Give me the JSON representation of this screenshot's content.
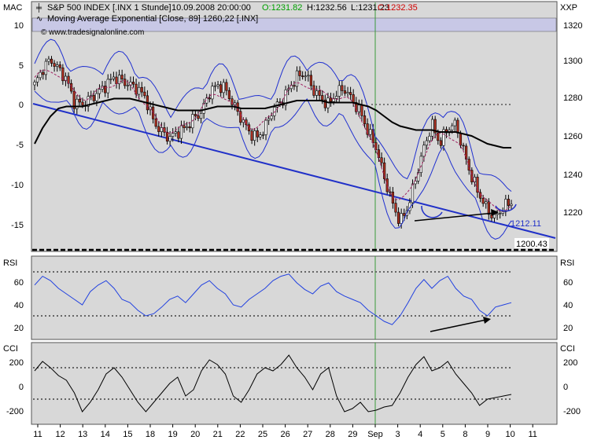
{
  "chart_data": {
    "type": "line",
    "instrument": {
      "name": "S&P 500 INDEX [.INX 1 Stunde]",
      "datetime": "10.09.2008 20:00:00",
      "open": "O:1231.82",
      "high": "H:1232.56",
      "low": "L:1231.23",
      "close": "C:1232.35"
    },
    "ma_legend": "Moving Average Exponential [Close, 89] 1260,22 [.INX]",
    "watermark": "© www.tradesignalonline.com",
    "colors": {
      "panel_bg": "#d8d8d8",
      "price_band": "#c8c8e6",
      "candle_up": "#ffffff",
      "candle_down": "#b03020",
      "ma": "#000000",
      "bollinger": "#2030d0",
      "trendline": "#2030c8",
      "rsi": "#2040e0",
      "cci": "#000000",
      "open_text": "#00a000",
      "close_text": "#d00000"
    },
    "main": {
      "left_axis_title": "MAC",
      "right_axis_title": "XXP",
      "left_ticks": [
        "10",
        "5",
        "0",
        "-5",
        "-10",
        "-15"
      ],
      "right_ticks": [
        "1320",
        "1300",
        "1280",
        "1260",
        "1240",
        "1220"
      ],
      "price_range": [
        1208,
        1324
      ],
      "price_series": [
        1292,
        1300,
        1305,
        1300,
        1295,
        1283,
        1282,
        1285,
        1288,
        1292,
        1296,
        1294,
        1292,
        1290,
        1285,
        1273,
        1268,
        1265,
        1268,
        1270,
        1275,
        1278,
        1288,
        1292,
        1290,
        1282,
        1275,
        1268,
        1265,
        1270,
        1280,
        1283,
        1290,
        1296,
        1298,
        1290,
        1285,
        1282,
        1288,
        1290,
        1284,
        1278,
        1268,
        1260,
        1245,
        1232,
        1222,
        1230,
        1245,
        1260,
        1272,
        1262,
        1270,
        1272,
        1258,
        1245,
        1236,
        1228,
        1224,
        1230,
        1232
      ],
      "ma_series": [
        1262,
        1270,
        1276,
        1280,
        1281,
        1281,
        1281,
        1282,
        1283,
        1284,
        1285,
        1285,
        1285,
        1284,
        1283,
        1282,
        1281,
        1280,
        1279,
        1279,
        1279,
        1279,
        1280,
        1281,
        1281,
        1281,
        1280,
        1280,
        1280,
        1280,
        1281,
        1282,
        1283,
        1284,
        1284,
        1284,
        1284,
        1283,
        1283,
        1283,
        1283,
        1282,
        1281,
        1279,
        1276,
        1273,
        1271,
        1270,
        1269,
        1269,
        1269,
        1268,
        1268,
        1268,
        1267,
        1266,
        1264,
        1262,
        1261,
        1260,
        1260
      ],
      "support_label": "1200.43",
      "trendline_label": "1212.11"
    },
    "rsi": {
      "title": "RSI",
      "ticks": [
        "60",
        "40",
        "20"
      ],
      "levels": [
        70,
        30
      ],
      "range": [
        10,
        80
      ],
      "series": [
        58,
        66,
        62,
        55,
        50,
        45,
        40,
        52,
        58,
        62,
        55,
        45,
        42,
        35,
        30,
        32,
        38,
        45,
        48,
        42,
        50,
        58,
        62,
        55,
        50,
        40,
        38,
        45,
        50,
        55,
        62,
        66,
        68,
        60,
        54,
        50,
        57,
        60,
        52,
        48,
        45,
        42,
        35,
        30,
        25,
        22,
        30,
        42,
        55,
        63,
        55,
        62,
        66,
        55,
        48,
        45,
        35,
        30,
        38,
        40,
        42
      ]
    },
    "cci": {
      "title": "CCI",
      "ticks": [
        "200",
        "0",
        "-200"
      ],
      "levels": [
        100,
        -100
      ],
      "range": [
        -250,
        250
      ],
      "series": [
        80,
        140,
        100,
        50,
        20,
        -60,
        -180,
        -120,
        -40,
        60,
        100,
        40,
        -40,
        -120,
        -180,
        -120,
        -60,
        0,
        40,
        -80,
        -40,
        80,
        150,
        120,
        60,
        -80,
        -120,
        -40,
        60,
        100,
        80,
        120,
        180,
        100,
        40,
        -40,
        60,
        100,
        -80,
        -180,
        -160,
        -120,
        -180,
        -170,
        -150,
        -140,
        -60,
        40,
        120,
        170,
        80,
        100,
        140,
        60,
        0,
        -60,
        -140,
        -100,
        -90,
        -80,
        -70
      ]
    },
    "x_ticks": [
      "11",
      "12",
      "13",
      "14",
      "15",
      "18",
      "19",
      "20",
      "21",
      "22",
      "25",
      "26",
      "27",
      "28",
      "29",
      "Sep",
      "3",
      "4",
      "5",
      "8",
      "9",
      "10",
      "11"
    ]
  }
}
